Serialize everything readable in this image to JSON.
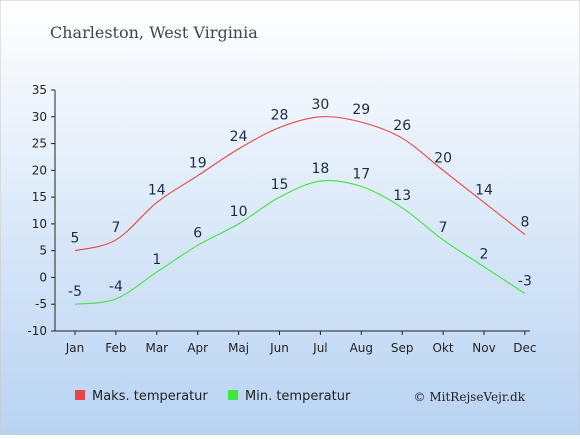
{
  "chart_data": {
    "type": "line",
    "title": "Charleston, West Virginia",
    "categories": [
      "Jan",
      "Feb",
      "Mar",
      "Apr",
      "Maj",
      "Jun",
      "Jul",
      "Aug",
      "Sep",
      "Okt",
      "Nov",
      "Dec"
    ],
    "series": [
      {
        "name": "Maks. temperatur",
        "color": "#e84545",
        "values": [
          5,
          7,
          14,
          19,
          24,
          28,
          30,
          29,
          26,
          20,
          14,
          8
        ]
      },
      {
        "name": "Min. temperatur",
        "color": "#3ee63e",
        "values": [
          -5,
          -4,
          1,
          6,
          10,
          15,
          18,
          17,
          13,
          7,
          2,
          -3
        ]
      }
    ],
    "ylim": [
      -10,
      35
    ],
    "yticks": [
      -10,
      -5,
      0,
      5,
      10,
      15,
      20,
      25,
      30,
      35
    ],
    "grid": false,
    "legend": "bottom",
    "credit": "© MitRejseVejr.dk",
    "background_top": "#ffffff",
    "background_bottom": "#b8d3f2"
  }
}
